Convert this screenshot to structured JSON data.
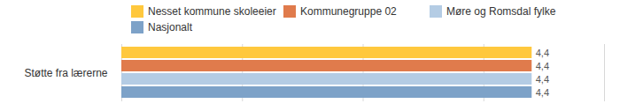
{
  "chart_data": {
    "type": "bar",
    "orientation": "horizontal",
    "categories": [
      "Støtte fra lærerne"
    ],
    "series": [
      {
        "name": "Nesset kommune skoleeier",
        "color": "#ffc83d",
        "values": [
          4.4
        ],
        "value_labels": [
          "4,4"
        ]
      },
      {
        "name": "Kommunegruppe 02",
        "color": "#e07b4c",
        "values": [
          4.4
        ],
        "value_labels": [
          "4,4"
        ]
      },
      {
        "name": "Møre og Romsdal fylke",
        "color": "#b4cce4",
        "values": [
          4.4
        ],
        "value_labels": [
          "4,4"
        ]
      },
      {
        "name": "Nasjonalt",
        "color": "#7da2c8",
        "values": [
          4.4
        ],
        "value_labels": [
          "4,4"
        ]
      }
    ],
    "xlim": [
      1,
      5
    ],
    "xticks": [
      1,
      2,
      3,
      4,
      5
    ],
    "grid": true,
    "data_labels": true,
    "tick_labels": "y",
    "legend": "top"
  }
}
